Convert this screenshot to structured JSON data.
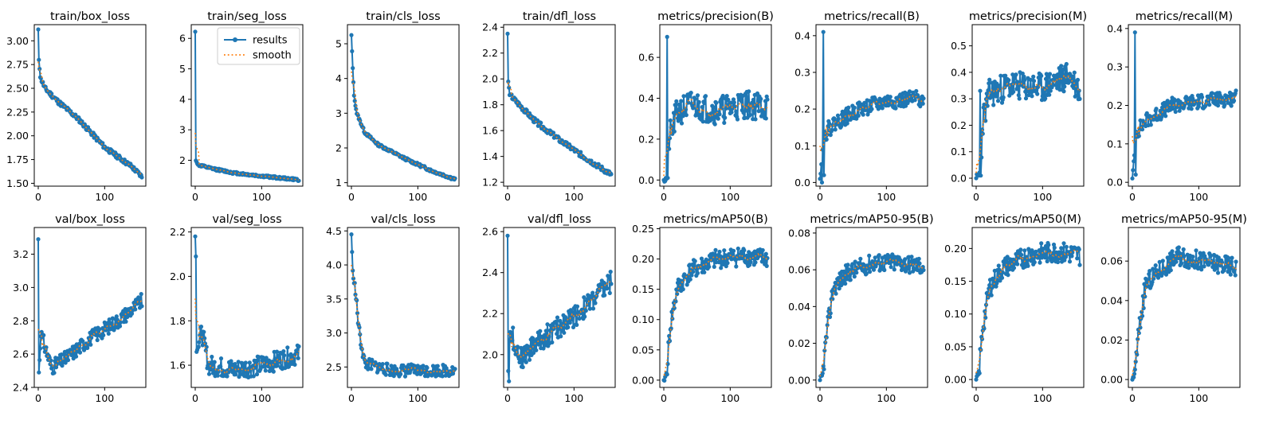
{
  "chart_data": [
    {
      "type": "line",
      "title": "train/box_loss",
      "xlim": [
        -6,
        162
      ],
      "ylim": [
        1.47,
        3.17
      ],
      "xticks": [
        0,
        100
      ],
      "yticks": [
        1.5,
        1.75,
        2.0,
        2.25,
        2.5,
        2.75,
        3.0
      ],
      "yfmt": 2,
      "curve": "decay",
      "trend": [
        [
          0,
          3.12
        ],
        [
          1,
          2.8
        ],
        [
          3,
          2.62
        ],
        [
          10,
          2.5
        ],
        [
          30,
          2.36
        ],
        [
          60,
          2.18
        ],
        [
          100,
          1.88
        ],
        [
          140,
          1.68
        ],
        [
          156,
          1.57
        ]
      ],
      "spikes": [
        [
          0,
          3.12
        ],
        [
          1,
          2.8
        ]
      ],
      "noise": 0.025,
      "seed": 11,
      "smoothStart": 2.78,
      "legend": [
        "results",
        "smooth"
      ]
    },
    {
      "type": "line",
      "title": "train/seg_loss",
      "xlim": [
        -6,
        162
      ],
      "ylim": [
        1.15,
        6.45
      ],
      "xticks": [
        0,
        100
      ],
      "yticks": [
        2,
        3,
        4,
        5,
        6
      ],
      "yfmt": 0,
      "curve": "decay",
      "trend": [
        [
          0,
          6.22
        ],
        [
          1,
          2.0
        ],
        [
          4,
          1.85
        ],
        [
          20,
          1.75
        ],
        [
          60,
          1.58
        ],
        [
          100,
          1.48
        ],
        [
          156,
          1.36
        ]
      ],
      "spikes": [
        [
          0,
          6.22
        ]
      ],
      "noise": 0.04,
      "seed": 12,
      "smoothStart": 2.9,
      "legend": [
        "results",
        "smooth"
      ],
      "showLegend": true
    },
    {
      "type": "line",
      "title": "train/cls_loss",
      "xlim": [
        -6,
        162
      ],
      "ylim": [
        0.9,
        5.55
      ],
      "xticks": [
        0,
        100
      ],
      "yticks": [
        1,
        2,
        3,
        4,
        5
      ],
      "yfmt": 0,
      "curve": "decay",
      "trend": [
        [
          0,
          5.25
        ],
        [
          2,
          4.3
        ],
        [
          4,
          3.5
        ],
        [
          8,
          3.0
        ],
        [
          20,
          2.45
        ],
        [
          40,
          2.1
        ],
        [
          80,
          1.7
        ],
        [
          120,
          1.35
        ],
        [
          156,
          1.1
        ]
      ],
      "spikes": [
        [
          0,
          5.25
        ],
        [
          2,
          4.3
        ]
      ],
      "noise": 0.04,
      "seed": 13,
      "smoothStart": 4.2,
      "legend": [
        "results",
        "smooth"
      ]
    },
    {
      "type": "line",
      "title": "train/dfl_loss",
      "xlim": [
        -6,
        162
      ],
      "ylim": [
        1.17,
        2.42
      ],
      "xticks": [
        0,
        100
      ],
      "yticks": [
        1.2,
        1.4,
        1.6,
        1.8,
        2.0,
        2.2,
        2.4
      ],
      "yfmt": 1,
      "curve": "decay",
      "trend": [
        [
          0,
          2.35
        ],
        [
          1,
          1.98
        ],
        [
          3,
          1.88
        ],
        [
          10,
          1.84
        ],
        [
          40,
          1.68
        ],
        [
          80,
          1.52
        ],
        [
          120,
          1.38
        ],
        [
          156,
          1.26
        ]
      ],
      "spikes": [
        [
          0,
          2.35
        ],
        [
          1,
          1.98
        ]
      ],
      "noise": 0.02,
      "seed": 14,
      "smoothStart": 1.96,
      "legend": [
        "results",
        "smooth"
      ]
    },
    {
      "type": "line",
      "title": "metrics/precision(B)",
      "xlim": [
        -6,
        162
      ],
      "ylim": [
        -0.03,
        0.76
      ],
      "xticks": [
        0,
        100
      ],
      "yticks": [
        0.0,
        0.2,
        0.4,
        0.6
      ],
      "yfmt": 1,
      "curve": "rise",
      "trend": [
        [
          0,
          0.0
        ],
        [
          4,
          0.01
        ],
        [
          8,
          0.2
        ],
        [
          20,
          0.33
        ],
        [
          40,
          0.37
        ],
        [
          80,
          0.34
        ],
        [
          120,
          0.37
        ],
        [
          156,
          0.36
        ]
      ],
      "spikes": [
        [
          0,
          0.0
        ],
        [
          3,
          0.01
        ],
        [
          5,
          0.7
        ],
        [
          6,
          0.01
        ]
      ],
      "noise": 0.07,
      "seed": 21,
      "smoothStart": 0.02,
      "legend": [
        "results",
        "smooth"
      ]
    },
    {
      "type": "line",
      "title": "metrics/recall(B)",
      "xlim": [
        -6,
        162
      ],
      "ylim": [
        -0.01,
        0.43
      ],
      "xticks": [
        0,
        100
      ],
      "yticks": [
        0.0,
        0.1,
        0.2,
        0.3,
        0.4
      ],
      "yfmt": 1,
      "curve": "rise",
      "trend": [
        [
          0,
          0.01
        ],
        [
          6,
          0.13
        ],
        [
          20,
          0.16
        ],
        [
          60,
          0.2
        ],
        [
          100,
          0.22
        ],
        [
          156,
          0.23
        ]
      ],
      "spikes": [
        [
          0,
          0.01
        ],
        [
          3,
          0.0
        ],
        [
          5,
          0.41
        ],
        [
          6,
          0.02
        ]
      ],
      "noise": 0.022,
      "seed": 22,
      "smoothStart": 0.1,
      "legend": [
        "results",
        "smooth"
      ]
    },
    {
      "type": "line",
      "title": "metrics/precision(M)",
      "xlim": [
        -6,
        162
      ],
      "ylim": [
        -0.03,
        0.58
      ],
      "xticks": [
        0,
        100
      ],
      "yticks": [
        0.0,
        0.1,
        0.2,
        0.3,
        0.4,
        0.5
      ],
      "yfmt": 1,
      "curve": "rise",
      "trend": [
        [
          0,
          0.0
        ],
        [
          6,
          0.02
        ],
        [
          10,
          0.22
        ],
        [
          20,
          0.32
        ],
        [
          50,
          0.35
        ],
        [
          100,
          0.34
        ],
        [
          140,
          0.39
        ],
        [
          156,
          0.33
        ]
      ],
      "spikes": [
        [
          0,
          0.0
        ],
        [
          4,
          0.01
        ],
        [
          6,
          0.33
        ],
        [
          7,
          0.01
        ]
      ],
      "noise": 0.055,
      "seed": 23,
      "smoothStart": 0.02,
      "legend": [
        "results",
        "smooth"
      ]
    },
    {
      "type": "line",
      "title": "metrics/recall(M)",
      "xlim": [
        -6,
        162
      ],
      "ylim": [
        -0.01,
        0.41
      ],
      "xticks": [
        0,
        100
      ],
      "yticks": [
        0.0,
        0.1,
        0.2,
        0.3,
        0.4
      ],
      "yfmt": 1,
      "curve": "rise",
      "trend": [
        [
          0,
          0.01
        ],
        [
          6,
          0.13
        ],
        [
          20,
          0.16
        ],
        [
          60,
          0.2
        ],
        [
          100,
          0.21
        ],
        [
          156,
          0.22
        ]
      ],
      "spikes": [
        [
          0,
          0.01
        ],
        [
          4,
          0.39
        ],
        [
          5,
          0.02
        ]
      ],
      "noise": 0.02,
      "seed": 24,
      "smoothStart": 0.12,
      "legend": [
        "results",
        "smooth"
      ]
    },
    {
      "type": "line",
      "title": "val/box_loss",
      "xlim": [
        -6,
        162
      ],
      "ylim": [
        2.4,
        3.36
      ],
      "xticks": [
        0,
        100
      ],
      "yticks": [
        2.4,
        2.6,
        2.8,
        3.0,
        3.2
      ],
      "yfmt": 1,
      "curve": "u",
      "trend": [
        [
          0,
          3.29
        ],
        [
          1,
          2.49
        ],
        [
          4,
          2.72
        ],
        [
          20,
          2.52
        ],
        [
          40,
          2.57
        ],
        [
          80,
          2.7
        ],
        [
          120,
          2.8
        ],
        [
          156,
          2.92
        ]
      ],
      "spikes": [
        [
          0,
          3.29
        ],
        [
          1,
          2.49
        ]
      ],
      "noise": 0.045,
      "seed": 31,
      "smoothStart": 2.75,
      "legend": [
        "results",
        "smooth"
      ]
    },
    {
      "type": "line",
      "title": "val/seg_loss",
      "xlim": [
        -6,
        162
      ],
      "ylim": [
        1.5,
        2.22
      ],
      "xticks": [
        0,
        100
      ],
      "yticks": [
        1.6,
        1.8,
        2.0,
        2.2
      ],
      "yfmt": 1,
      "curve": "u",
      "trend": [
        [
          0,
          2.18
        ],
        [
          1,
          2.09
        ],
        [
          3,
          1.68
        ],
        [
          10,
          1.75
        ],
        [
          20,
          1.6
        ],
        [
          60,
          1.58
        ],
        [
          100,
          1.6
        ],
        [
          156,
          1.65
        ]
      ],
      "spikes": [
        [
          0,
          2.18
        ],
        [
          1,
          2.09
        ],
        [
          2,
          1.66
        ]
      ],
      "noise": 0.045,
      "seed": 32,
      "smoothStart": 1.9,
      "legend": [
        "results",
        "smooth"
      ]
    },
    {
      "type": "line",
      "title": "val/cls_loss",
      "xlim": [
        -6,
        162
      ],
      "ylim": [
        2.2,
        4.55
      ],
      "xticks": [
        0,
        100
      ],
      "yticks": [
        2.5,
        3.0,
        3.5,
        4.0,
        4.5
      ],
      "yfmt": 1,
      "curve": "decay",
      "trend": [
        [
          0,
          4.45
        ],
        [
          2,
          3.9
        ],
        [
          6,
          3.6
        ],
        [
          12,
          3.0
        ],
        [
          20,
          2.55
        ],
        [
          60,
          2.45
        ],
        [
          156,
          2.45
        ]
      ],
      "spikes": [
        [
          0,
          4.45
        ]
      ],
      "noise": 0.09,
      "seed": 33,
      "smoothStart": 4.0,
      "legend": [
        "results",
        "smooth"
      ]
    },
    {
      "type": "line",
      "title": "val/dfl_loss",
      "xlim": [
        -6,
        162
      ],
      "ylim": [
        1.84,
        2.62
      ],
      "xticks": [
        0,
        100
      ],
      "yticks": [
        2.0,
        2.2,
        2.4,
        2.6
      ],
      "yfmt": 1,
      "curve": "u",
      "trend": [
        [
          0,
          2.58
        ],
        [
          1,
          1.92
        ],
        [
          4,
          2.12
        ],
        [
          20,
          1.98
        ],
        [
          40,
          2.05
        ],
        [
          80,
          2.14
        ],
        [
          120,
          2.24
        ],
        [
          156,
          2.36
        ]
      ],
      "spikes": [
        [
          0,
          2.58
        ],
        [
          1,
          1.92
        ],
        [
          2,
          1.87
        ]
      ],
      "noise": 0.055,
      "seed": 34,
      "smoothStart": 2.1,
      "legend": [
        "results",
        "smooth"
      ]
    },
    {
      "type": "line",
      "title": "metrics/mAP50(B)",
      "xlim": [
        -6,
        162
      ],
      "ylim": [
        -0.012,
        0.252
      ],
      "xticks": [
        0,
        100
      ],
      "yticks": [
        0.0,
        0.05,
        0.1,
        0.15,
        0.2,
        0.25
      ],
      "yfmt": 2,
      "curve": "rise",
      "trend": [
        [
          0,
          0.0
        ],
        [
          4,
          0.01
        ],
        [
          10,
          0.09
        ],
        [
          20,
          0.15
        ],
        [
          40,
          0.18
        ],
        [
          80,
          0.2
        ],
        [
          120,
          0.205
        ],
        [
          156,
          0.2
        ]
      ],
      "spikes": [
        [
          0,
          0.0
        ]
      ],
      "noise": 0.016,
      "seed": 41,
      "smoothStart": 0.01,
      "legend": [
        "results",
        "smooth"
      ]
    },
    {
      "type": "line",
      "title": "metrics/mAP50-95(B)",
      "xlim": [
        -6,
        162
      ],
      "ylim": [
        -0.004,
        0.083
      ],
      "xticks": [
        0,
        100
      ],
      "yticks": [
        0.0,
        0.02,
        0.04,
        0.06,
        0.08
      ],
      "yfmt": 2,
      "curve": "rise",
      "trend": [
        [
          0,
          0.0
        ],
        [
          4,
          0.003
        ],
        [
          10,
          0.025
        ],
        [
          20,
          0.05
        ],
        [
          40,
          0.058
        ],
        [
          80,
          0.064
        ],
        [
          120,
          0.064
        ],
        [
          156,
          0.062
        ]
      ],
      "spikes": [
        [
          0,
          0.0
        ]
      ],
      "noise": 0.005,
      "seed": 42,
      "smoothStart": 0.002,
      "legend": [
        "results",
        "smooth"
      ]
    },
    {
      "type": "line",
      "title": "metrics/mAP50(M)",
      "xlim": [
        -6,
        162
      ],
      "ylim": [
        -0.012,
        0.232
      ],
      "xticks": [
        0,
        100
      ],
      "yticks": [
        0.0,
        0.05,
        0.1,
        0.15,
        0.2
      ],
      "yfmt": 2,
      "curve": "rise",
      "trend": [
        [
          0,
          0.0
        ],
        [
          4,
          0.01
        ],
        [
          10,
          0.08
        ],
        [
          20,
          0.14
        ],
        [
          40,
          0.17
        ],
        [
          80,
          0.19
        ],
        [
          120,
          0.195
        ],
        [
          156,
          0.19
        ]
      ],
      "spikes": [
        [
          0,
          0.0
        ]
      ],
      "noise": 0.016,
      "seed": 43,
      "smoothStart": 0.01,
      "legend": [
        "results",
        "smooth"
      ]
    },
    {
      "type": "line",
      "title": "metrics/mAP50-95(M)",
      "xlim": [
        -6,
        162
      ],
      "ylim": [
        -0.004,
        0.077
      ],
      "xticks": [
        0,
        100
      ],
      "yticks": [
        0.0,
        0.02,
        0.04,
        0.06
      ],
      "yfmt": 2,
      "curve": "rise",
      "trend": [
        [
          0,
          0.0
        ],
        [
          4,
          0.004
        ],
        [
          10,
          0.025
        ],
        [
          20,
          0.048
        ],
        [
          40,
          0.055
        ],
        [
          70,
          0.063
        ],
        [
          100,
          0.06
        ],
        [
          156,
          0.057
        ]
      ],
      "spikes": [
        [
          0,
          0.0
        ]
      ],
      "noise": 0.005,
      "seed": 44,
      "smoothStart": 0.002,
      "legend": [
        "results",
        "smooth"
      ]
    }
  ],
  "legend": {
    "results_label": "results",
    "smooth_label": "smooth"
  },
  "colors": {
    "results": "#1f77b4",
    "smooth": "#ff7f0e"
  }
}
